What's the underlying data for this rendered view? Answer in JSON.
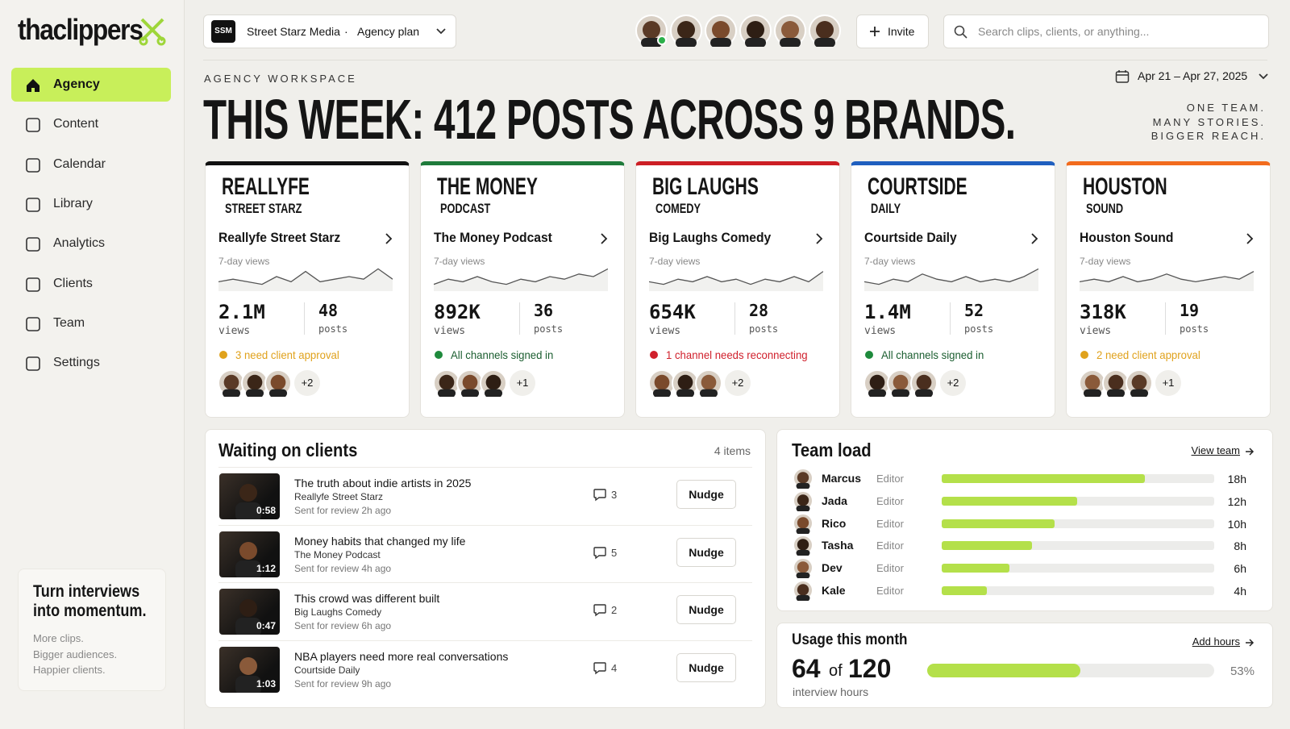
{
  "sidebar": {
    "logo": "thaclippers",
    "nav": [
      "Agency",
      "Content",
      "Calendar",
      "Library",
      "Analytics",
      "Clients",
      "Team",
      "Settings"
    ],
    "active": 0,
    "promo": {
      "title": "Turn interviews into momentum.",
      "lines": [
        "More clips.",
        "Bigger audiences.",
        "Happier clients."
      ]
    }
  },
  "topbar": {
    "workspace_badge": "SSM",
    "workspace": "Street Starz Media",
    "separator": "·",
    "plan": "Agency plan",
    "invite": "Invite",
    "search_placeholder": "Search clips, clients, or anything..."
  },
  "header": {
    "eyebrow": "AGENCY WORKSPACE",
    "title": "THIS WEEK: 412 POSTS ACROSS 9 BRANDS.",
    "date_range": "Apr 21 – Apr 27, 2025",
    "tagline": [
      "ONE TEAM.",
      "MANY STORIES.",
      "BIGGER REACH."
    ]
  },
  "brands": [
    {
      "logo": [
        "REALLYFE",
        "STREET STARZ"
      ],
      "name": "Reallyfe Street Starz",
      "metric_label": "7-day views",
      "views": "2.1M",
      "views_label": "views",
      "posts": 48,
      "posts_label": "posts",
      "status": "3 need client approval",
      "status_color": "#e0a21c",
      "extra": "+2",
      "accent": "#111111",
      "spark": [
        3,
        4,
        3,
        2,
        5,
        3,
        7,
        3,
        4,
        5,
        4,
        8,
        4
      ]
    },
    {
      "logo": [
        "THE MONEY",
        "PODCAST"
      ],
      "name": "The Money Podcast",
      "metric_label": "7-day views",
      "views": "892K",
      "views_label": "views",
      "posts": 36,
      "posts_label": "posts",
      "status": "All channels signed in",
      "status_color": "#1e8a3c",
      "extra": "+1",
      "accent": "#1e7a3a",
      "spark": [
        2,
        4,
        3,
        5,
        3,
        2,
        4,
        3,
        5,
        4,
        6,
        5,
        8
      ]
    },
    {
      "logo": [
        "BIG LAUGHS",
        "COMEDY"
      ],
      "name": "Big Laughs Comedy",
      "metric_label": "7-day views",
      "views": "654K",
      "views_label": "views",
      "posts": 28,
      "posts_label": "posts",
      "status": "1 channel needs reconnecting",
      "status_color": "#d0202c",
      "extra": "+2",
      "accent": "#cc1e24",
      "spark": [
        3,
        2,
        4,
        3,
        5,
        3,
        4,
        2,
        4,
        3,
        5,
        3,
        7
      ]
    },
    {
      "logo": [
        "COURTSIDE",
        "DAILY"
      ],
      "name": "Courtside Daily",
      "metric_label": "7-day views",
      "views": "1.4M",
      "views_label": "views",
      "posts": 52,
      "posts_label": "posts",
      "status": "All channels signed in",
      "status_color": "#1e8a3c",
      "extra": "+2",
      "accent": "#1f5fbf",
      "spark": [
        3,
        2,
        4,
        3,
        6,
        4,
        3,
        5,
        3,
        4,
        3,
        5,
        8
      ]
    },
    {
      "logo": [
        "HOUSTON",
        "SOUND"
      ],
      "name": "Houston Sound",
      "metric_label": "7-day views",
      "views": "318K",
      "views_label": "views",
      "posts": 19,
      "posts_label": "posts",
      "status": "2 need client approval",
      "status_color": "#e0a21c",
      "extra": "+1",
      "accent": "#f26b1d",
      "spark": [
        3,
        4,
        3,
        5,
        3,
        4,
        6,
        4,
        3,
        4,
        5,
        4,
        7
      ]
    }
  ],
  "waiting": {
    "title": "Waiting on clients",
    "count": "4 items",
    "items": [
      {
        "duration": "0:58",
        "title": "The truth about indie artists in 2025",
        "client": "Reallyfe Street Starz",
        "sent": "Sent for review 2h ago",
        "comments": 3,
        "action": "Nudge"
      },
      {
        "duration": "1:12",
        "title": "Money habits that changed my life",
        "client": "The Money Podcast",
        "sent": "Sent for review 4h ago",
        "comments": 5,
        "action": "Nudge"
      },
      {
        "duration": "0:47",
        "title": "This crowd was different built",
        "client": "Big Laughs Comedy",
        "sent": "Sent for review 6h ago",
        "comments": 2,
        "action": "Nudge"
      },
      {
        "duration": "1:03",
        "title": "NBA players need more real conversations",
        "client": "Courtside Daily",
        "sent": "Sent for review 9h ago",
        "comments": 4,
        "action": "Nudge"
      }
    ]
  },
  "team": {
    "title": "Team load",
    "link": "View team",
    "members": [
      {
        "name": "Marcus",
        "role": "Editor",
        "hours": 18,
        "hours_label": "18h"
      },
      {
        "name": "Jada",
        "role": "Editor",
        "hours": 12,
        "hours_label": "12h"
      },
      {
        "name": "Rico",
        "role": "Editor",
        "hours": 10,
        "hours_label": "10h"
      },
      {
        "name": "Tasha",
        "role": "Editor",
        "hours": 8,
        "hours_label": "8h"
      },
      {
        "name": "Dev",
        "role": "Editor",
        "hours": 6,
        "hours_label": "6h"
      },
      {
        "name": "Kale",
        "role": "Editor",
        "hours": 4,
        "hours_label": "4h"
      }
    ]
  },
  "usage": {
    "title": "Usage this month",
    "link": "Add hours",
    "used": 64,
    "of": "of",
    "total": 120,
    "unit": "interview hours",
    "percent_label": "53%"
  }
}
